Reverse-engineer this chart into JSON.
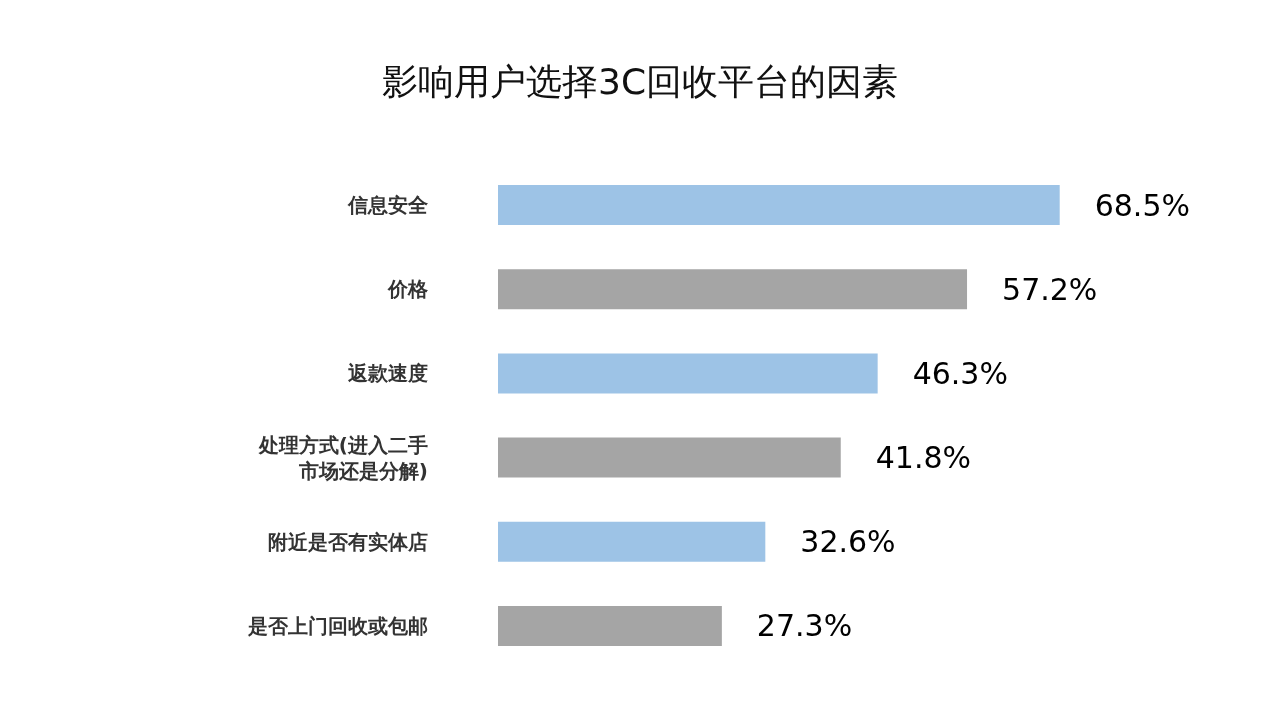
{
  "chart_data": {
    "type": "bar",
    "orientation": "horizontal",
    "title": "影响用户选择3C回收平台的因素",
    "categories": [
      "信息安全",
      "价格",
      "返款速度",
      "处理方式(进入二手市场还是分解)",
      "附近是否有实体店",
      "是否上门回收或包邮"
    ],
    "values": [
      68.5,
      57.2,
      46.3,
      41.8,
      32.6,
      27.3
    ],
    "value_labels": [
      "68.5%",
      "57.2%",
      "46.3%",
      "41.8%",
      "32.6%",
      "27.3%"
    ],
    "colors": [
      "#9dc3e6",
      "#a5a5a5",
      "#9dc3e6",
      "#a5a5a5",
      "#9dc3e6",
      "#a5a5a5"
    ],
    "grid": false
  }
}
